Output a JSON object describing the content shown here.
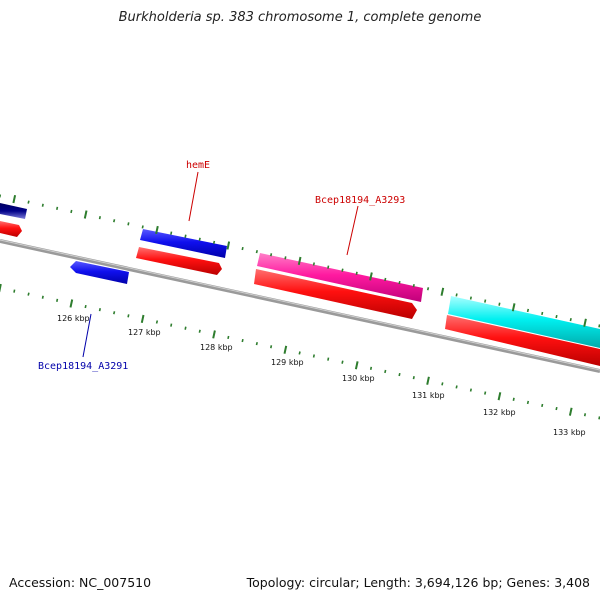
{
  "title": "Burkholderia sp. 383 chromosome 1, complete genome",
  "footer": {
    "accession": "Accession: NC_007510",
    "summary": "Topology: circular; Length: 3,694,126 bp; Genes: 3,408"
  },
  "colors": {
    "backbone": "#888888",
    "ticks": "#2e7d2e",
    "label_red": "#cc0000",
    "label_blue": "#0000aa"
  },
  "scale_labels": [
    "126 kbp",
    "127 kbp",
    "128 kbp",
    "129 kbp",
    "130 kbp",
    "131 kbp",
    "132 kbp",
    "133 kbp"
  ],
  "gene_labels": [
    {
      "name": "hemE",
      "color": "#cc0000"
    },
    {
      "name": "Bcep18194_A3293",
      "color": "#cc0000"
    },
    {
      "name": "Bcep18194_A3291",
      "color": "#0000aa"
    }
  ]
}
